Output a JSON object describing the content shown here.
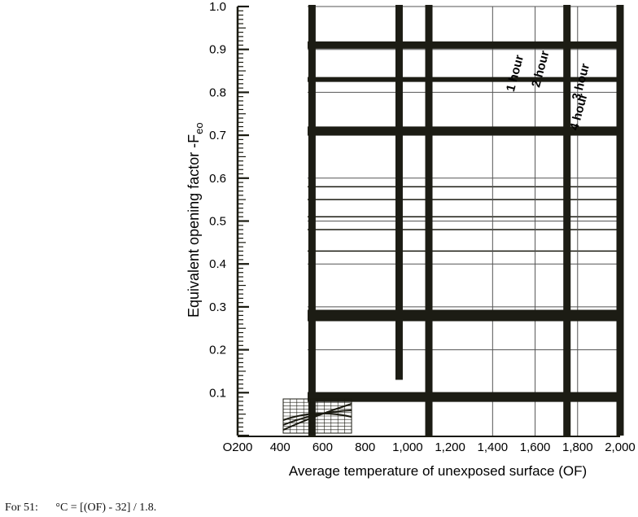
{
  "chart_data": {
    "type": "line",
    "title": "",
    "ylabel": "Equivalent opening factor -F",
    "ylabel_sub": "eo",
    "xlabel": "Average temperature of unexposed surface (OF)",
    "xlim": [
      200,
      2000
    ],
    "ylim": [
      0,
      1.0
    ],
    "x_ticks": [
      200,
      400,
      600,
      800,
      1000,
      1200,
      1400,
      1600,
      1800,
      2000
    ],
    "x_tick_labels": [
      "O200",
      "400",
      "600",
      "800",
      "1,000",
      "1,200",
      "1,400",
      "1,600",
      "1,800",
      "2,000"
    ],
    "y_ticks": [
      0.1,
      0.2,
      0.3,
      0.4,
      0.5,
      0.6,
      0.7,
      0.8,
      0.9,
      1.0
    ],
    "y_tick_labels": [
      "0.1",
      "0.2",
      "0.3",
      "0.4",
      "0.5",
      "0.6",
      "0.7",
      "0.8",
      "0.9",
      "1.0"
    ],
    "grid": true,
    "legend": "none",
    "series": [
      {
        "x": [
          200,
          2000
        ],
        "y": [
          0.91,
          0.91
        ]
      },
      {
        "x": [
          200,
          2000
        ],
        "y": [
          0.83,
          0.83
        ]
      },
      {
        "x": [
          200,
          2000
        ],
        "y": [
          0.71,
          0.71
        ]
      },
      {
        "x": [
          200,
          2000
        ],
        "y": [
          0.28,
          0.28
        ]
      },
      {
        "x": [
          200,
          2000
        ],
        "y": [
          0.09,
          0.09
        ]
      }
    ],
    "annotations": [
      {
        "text": "1 hour",
        "x": 1500,
        "y": 0.8
      },
      {
        "text": "2 hour",
        "x": 1620,
        "y": 0.81
      },
      {
        "text": "3 hour",
        "x": 1810,
        "y": 0.78
      },
      {
        "text": "4 hour",
        "x": 1800,
        "y": 0.71
      }
    ]
  },
  "footnote": {
    "prefix": "For 51:",
    "formula": "°C = [(OF) - 32] / 1.8."
  },
  "colors": {
    "ink": "#1a1a10",
    "grid": "#555555",
    "bar": "#1c1c14"
  }
}
